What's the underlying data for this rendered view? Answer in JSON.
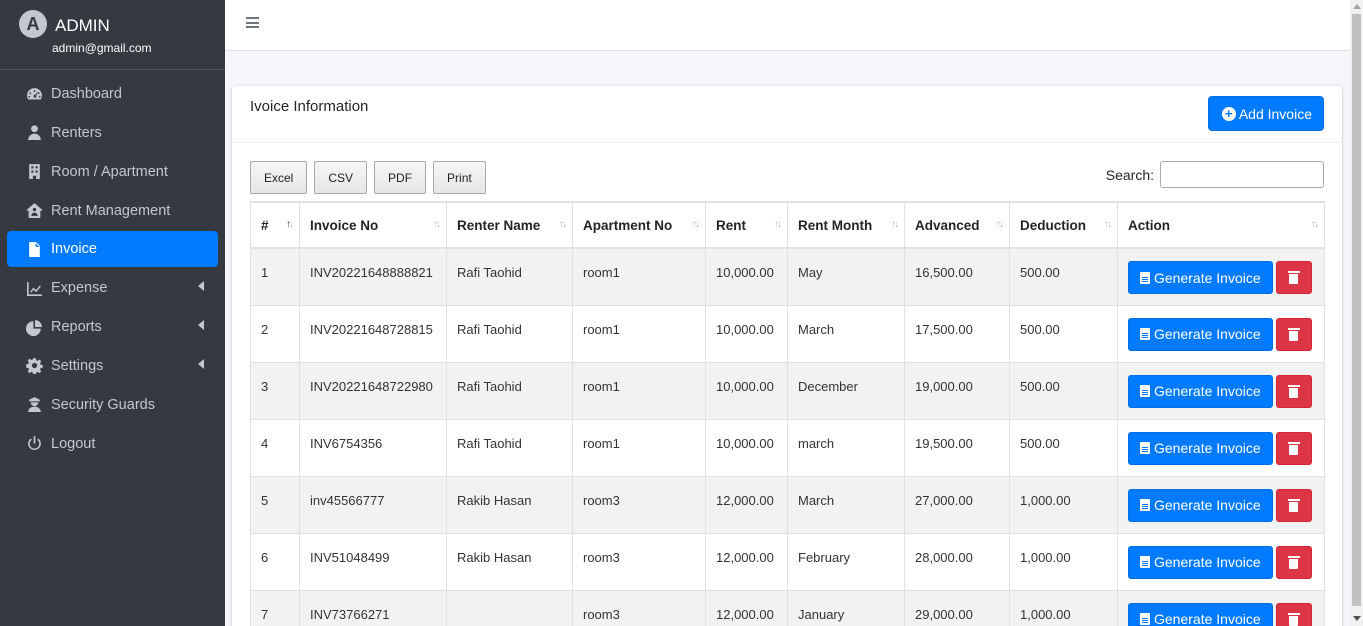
{
  "app": {
    "brand_letter": "A",
    "brand_name": "ADMIN",
    "user_email": "admin@gmail.com"
  },
  "sidebar": {
    "items": [
      {
        "label": "Dashboard",
        "icon": "tachometer-icon",
        "active": false,
        "has_caret": false
      },
      {
        "label": "Renters",
        "icon": "user-icon",
        "active": false,
        "has_caret": false
      },
      {
        "label": "Room / Apartment",
        "icon": "building-icon",
        "active": false,
        "has_caret": false
      },
      {
        "label": "Rent Management",
        "icon": "house-user-icon",
        "active": false,
        "has_caret": false
      },
      {
        "label": "Invoice",
        "icon": "file-invoice-icon",
        "active": true,
        "has_caret": false
      },
      {
        "label": "Expense",
        "icon": "chart-line-icon",
        "active": false,
        "has_caret": true
      },
      {
        "label": "Reports",
        "icon": "pie-chart-icon",
        "active": false,
        "has_caret": true
      },
      {
        "label": "Settings",
        "icon": "gear-icon",
        "active": false,
        "has_caret": true
      },
      {
        "label": "Security Guards",
        "icon": "guard-icon",
        "active": false,
        "has_caret": false
      },
      {
        "label": "Logout",
        "icon": "power-icon",
        "active": false,
        "has_caret": false
      }
    ]
  },
  "card": {
    "title": "Ivoice Information",
    "add_button": "Add Invoice",
    "export_buttons": [
      "Excel",
      "CSV",
      "PDF",
      "Print"
    ],
    "search_label": "Search:",
    "search_value": ""
  },
  "table": {
    "columns": [
      "#",
      "Invoice No",
      "Renter Name",
      "Apartment No",
      "Rent",
      "Rent Month",
      "Advanced",
      "Deduction",
      "Action"
    ],
    "action_label": "Generate Invoice",
    "rows": [
      [
        "1",
        "INV20221648888821",
        "Rafi Taohid",
        "room1",
        "10,000.00",
        "May",
        "16,500.00",
        "500.00"
      ],
      [
        "2",
        "INV20221648728815",
        "Rafi Taohid",
        "room1",
        "10,000.00",
        "March",
        "17,500.00",
        "500.00"
      ],
      [
        "3",
        "INV20221648722980",
        "Rafi Taohid",
        "room1",
        "10,000.00",
        "December",
        "19,000.00",
        "500.00"
      ],
      [
        "4",
        "INV6754356",
        "Rafi Taohid",
        "room1",
        "10,000.00",
        "march",
        "19,500.00",
        "500.00"
      ],
      [
        "5",
        "inv45566777",
        "Rakib Hasan",
        "room3",
        "12,000.00",
        "March",
        "27,000.00",
        "1,000.00"
      ],
      [
        "6",
        "INV51048499",
        "Rakib Hasan",
        "room3",
        "12,000.00",
        "February",
        "28,000.00",
        "1,000.00"
      ],
      [
        "7",
        "INV73766271",
        "",
        "room3",
        "12,000.00",
        "January",
        "29,000.00",
        "1,000.00"
      ]
    ]
  },
  "colors": {
    "sidebar_bg": "#343a40",
    "primary": "#007bff",
    "danger": "#dc3545"
  }
}
